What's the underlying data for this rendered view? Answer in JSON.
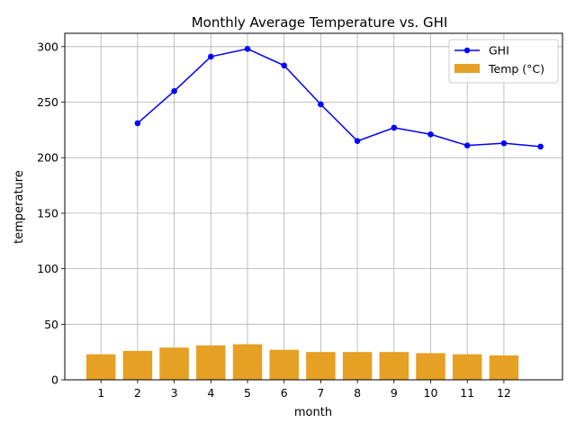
{
  "chart_data": {
    "type": "bar+line",
    "title": "Monthly Average Temperature vs. GHI",
    "xlabel": "month",
    "ylabel": "temperature",
    "categories": [
      "1",
      "2",
      "3",
      "4",
      "5",
      "6",
      "7",
      "8",
      "9",
      "10",
      "11",
      "12"
    ],
    "ylim": [
      0,
      312
    ],
    "yticks": [
      0,
      50,
      100,
      150,
      200,
      250,
      300
    ],
    "grid": true,
    "legend_position": "top-right",
    "colors": {
      "bar": "#e6a024",
      "line": "#0000ff",
      "grid": "#b0b0b0"
    },
    "bars": {
      "name": "Temp (°C)",
      "values": [
        23,
        26,
        29,
        31,
        32,
        27,
        25,
        25,
        25,
        24,
        23,
        22
      ]
    },
    "line": {
      "name": "GHI",
      "x": [
        2,
        3,
        4,
        5,
        6,
        7,
        8,
        9,
        10,
        11,
        12,
        13
      ],
      "values": [
        231,
        260,
        291,
        298,
        283,
        248,
        215,
        227,
        221,
        211,
        213,
        210
      ]
    }
  }
}
